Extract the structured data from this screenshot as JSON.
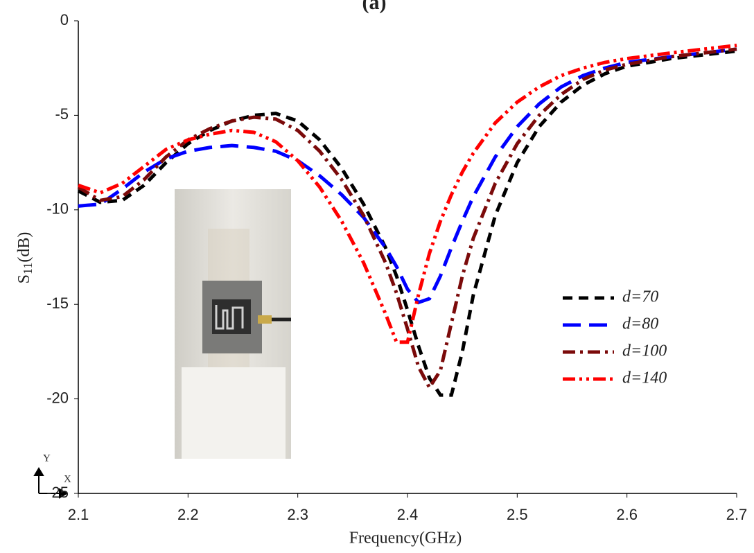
{
  "chart_data": {
    "type": "line",
    "title": "(a)",
    "xlabel": "Frequency(GHz)",
    "ylabel": [
      "S",
      "11",
      "(dB)"
    ],
    "corner_labels": {
      "y": "Y",
      "x": "X"
    },
    "x": [
      2.1,
      2.12,
      2.14,
      2.16,
      2.18,
      2.2,
      2.22,
      2.24,
      2.26,
      2.28,
      2.3,
      2.32,
      2.34,
      2.36,
      2.38,
      2.39,
      2.4,
      2.41,
      2.42,
      2.43,
      2.44,
      2.45,
      2.46,
      2.48,
      2.5,
      2.52,
      2.54,
      2.56,
      2.58,
      2.6,
      2.64,
      2.7
    ],
    "series": [
      {
        "name": "d=70",
        "color": "#000000",
        "style": "dash",
        "values": [
          -9.0,
          -9.6,
          -9.5,
          -8.7,
          -7.5,
          -6.5,
          -5.8,
          -5.3,
          -5.0,
          -4.9,
          -5.3,
          -6.3,
          -7.8,
          -9.7,
          -12.0,
          -13.5,
          -15.3,
          -17.2,
          -18.9,
          -19.8,
          -19.8,
          -17.5,
          -14.5,
          -10.3,
          -7.5,
          -5.6,
          -4.3,
          -3.4,
          -2.8,
          -2.4,
          -2.0,
          -1.6
        ]
      },
      {
        "name": "d=80",
        "color": "#0000ff",
        "style": "long-dash",
        "values": [
          -9.8,
          -9.7,
          -8.9,
          -8.0,
          -7.3,
          -6.9,
          -6.7,
          -6.6,
          -6.7,
          -6.9,
          -7.4,
          -8.2,
          -9.2,
          -10.4,
          -12.0,
          -13.0,
          -14.2,
          -14.9,
          -14.7,
          -13.5,
          -12.0,
          -10.6,
          -9.3,
          -7.2,
          -5.6,
          -4.4,
          -3.5,
          -2.9,
          -2.5,
          -2.2,
          -1.9,
          -1.5
        ]
      },
      {
        "name": "d=100",
        "color": "#7b0a0a",
        "style": "dash-dot",
        "values": [
          -8.8,
          -9.5,
          -9.3,
          -8.4,
          -7.2,
          -6.3,
          -5.7,
          -5.3,
          -5.1,
          -5.2,
          -5.8,
          -6.9,
          -8.4,
          -10.3,
          -12.8,
          -14.4,
          -16.3,
          -18.3,
          -19.4,
          -18.5,
          -16.0,
          -13.5,
          -11.5,
          -8.6,
          -6.5,
          -5.0,
          -3.9,
          -3.1,
          -2.6,
          -2.3,
          -1.9,
          -1.5
        ]
      },
      {
        "name": "d=140",
        "color": "#ff0000",
        "style": "dash-dot-dot",
        "values": [
          -8.7,
          -9.1,
          -8.6,
          -7.7,
          -6.8,
          -6.3,
          -6.0,
          -5.8,
          -5.9,
          -6.4,
          -7.4,
          -8.8,
          -10.6,
          -12.8,
          -15.5,
          -17.0,
          -17.0,
          -14.5,
          -12.3,
          -10.6,
          -9.2,
          -8.0,
          -7.0,
          -5.4,
          -4.3,
          -3.5,
          -2.9,
          -2.5,
          -2.2,
          -2.0,
          -1.7,
          -1.3
        ]
      }
    ],
    "xlim": [
      2.1,
      2.7
    ],
    "xticks": [
      2.1,
      2.2,
      2.3,
      2.4,
      2.5,
      2.6,
      2.7
    ],
    "ylim": [
      -25,
      0
    ],
    "yticks": [
      0,
      -5,
      -10,
      -15,
      -20,
      -25
    ],
    "grid": false
  }
}
